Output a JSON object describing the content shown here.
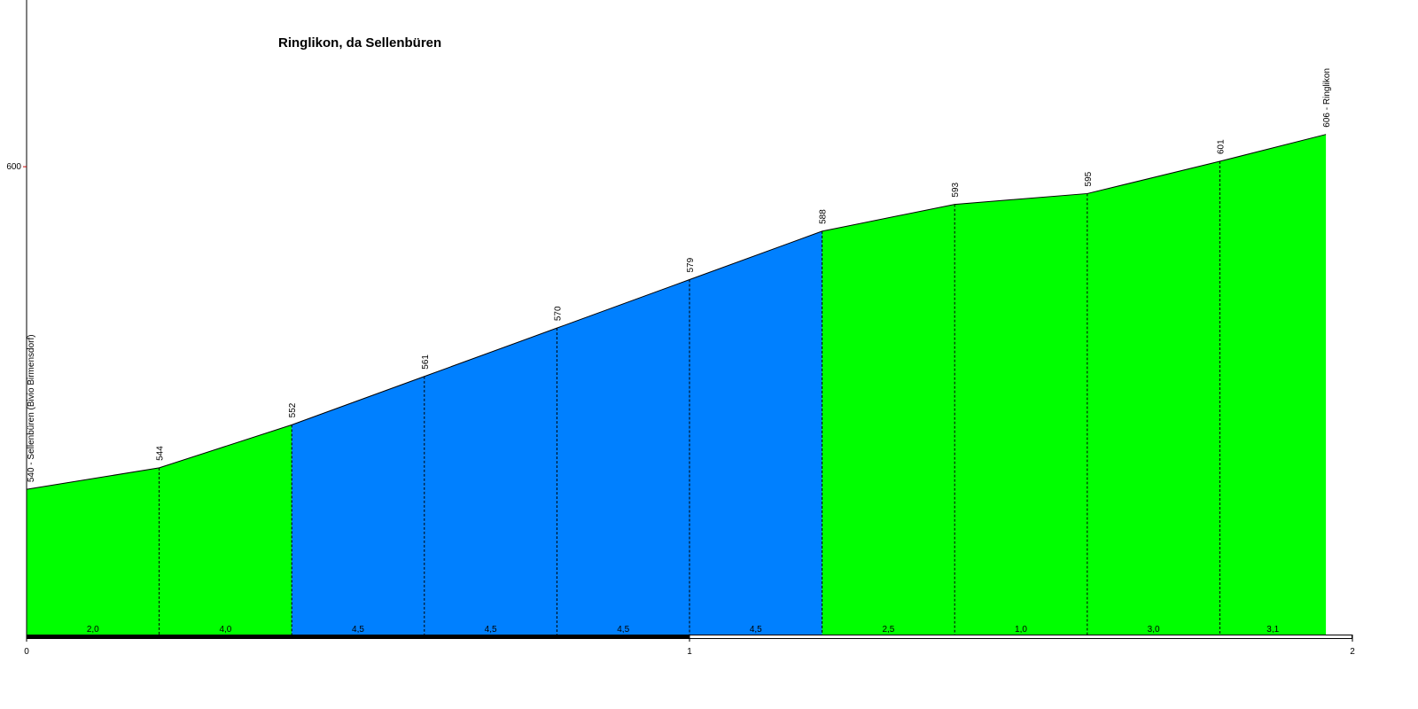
{
  "chart_data": {
    "type": "area",
    "title": "Ringlikon, da Sellenbüren",
    "x": [
      0,
      0.2,
      0.4,
      0.6,
      0.8,
      1.0,
      1.2,
      1.4,
      1.6,
      1.8,
      1.96
    ],
    "values": [
      540,
      544,
      552,
      561,
      570,
      579,
      588,
      593,
      595,
      601,
      606
    ],
    "value_labels": [
      "540 - Sellenbüren (Bivio Birmensdorf)",
      "544",
      "552",
      "561",
      "570",
      "579",
      "588",
      "593",
      "595",
      "601",
      "606 - Ringlikon"
    ],
    "segments": {
      "values": [
        2.0,
        4.0,
        4.5,
        4.5,
        4.5,
        4.5,
        2.5,
        1.0,
        3.0,
        3.1
      ],
      "value_labels": [
        "2,0",
        "4,0",
        "4,5",
        "4,5",
        "4,5",
        "4,5",
        "2,5",
        "1,0",
        "3,0",
        "3,1"
      ],
      "colors": [
        "#00ff00",
        "#00ff00",
        "#0080ff",
        "#0080ff",
        "#0080ff",
        "#0080ff",
        "#00ff00",
        "#00ff00",
        "#00ff00",
        "#00ff00"
      ]
    },
    "xlim": [
      0,
      2
    ],
    "ylim": [
      513,
      631
    ],
    "xticks": [
      0,
      1,
      2
    ],
    "yticks": [
      600
    ]
  }
}
